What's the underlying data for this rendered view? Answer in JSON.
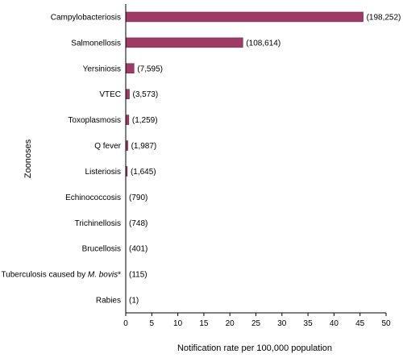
{
  "chart_data": {
    "type": "bar",
    "orientation": "horizontal",
    "categories": [
      "Campylobacteriosis",
      "Salmonellosis",
      "Yersiniosis",
      "VTEC",
      "Toxoplasmosis",
      "Q fever",
      "Listeriosis",
      "Echinococcosis",
      "Trichinellosis",
      "Brucellosis",
      "Tuberculosis caused by M. bovis*",
      "Rabies"
    ],
    "values": [
      45.6,
      22.5,
      1.6,
      0.7,
      0.6,
      0.4,
      0.3,
      0,
      0,
      0,
      0,
      0
    ],
    "data_labels": [
      "(198,252)",
      "(108,614)",
      "(7,595)",
      "(3,573)",
      "(1,259)",
      "(1,987)",
      "(1,645)",
      "(790)",
      "(748)",
      "(401)",
      "(115)",
      "(1)"
    ],
    "title": "",
    "xlabel": "Notification rate per 100,000 population",
    "ylabel": "Zoonoses",
    "xlim": [
      0,
      50
    ],
    "x_ticks": [
      "0",
      "5",
      "10",
      "15",
      "20",
      "25",
      "30",
      "35",
      "40",
      "45",
      "50"
    ],
    "grid": false,
    "legend": "none",
    "bar_color": "#9e3a64"
  }
}
